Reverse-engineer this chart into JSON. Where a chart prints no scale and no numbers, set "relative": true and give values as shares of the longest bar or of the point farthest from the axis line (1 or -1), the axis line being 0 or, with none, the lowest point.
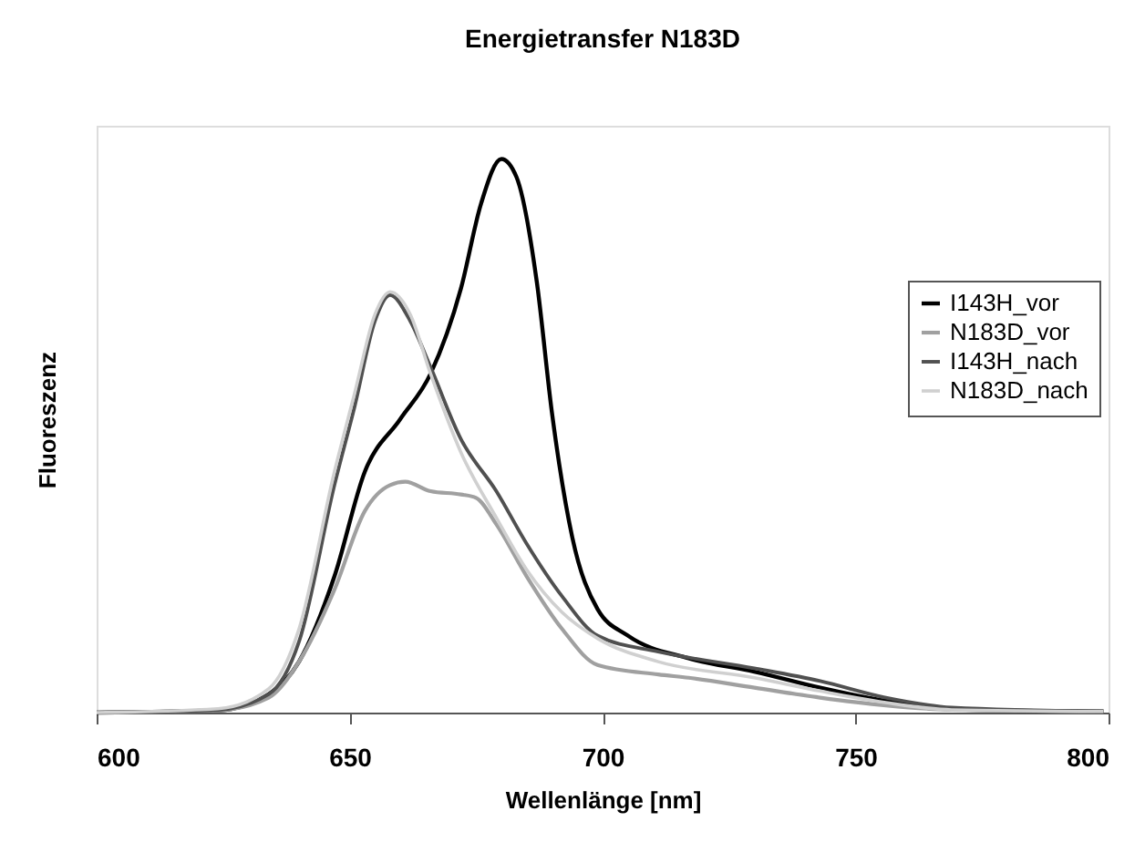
{
  "chart_data": {
    "type": "line",
    "title": "Energietransfer N183D",
    "xlabel": "Wellenlänge [nm]",
    "ylabel": "Fluoreszenz",
    "relative": true,
    "xlim": [
      600,
      800
    ],
    "xticks": [
      600,
      650,
      700,
      750,
      800
    ],
    "grid": false,
    "legend": "right",
    "x": [
      600,
      624,
      634,
      640,
      647,
      653,
      660,
      666,
      672,
      676,
      680,
      683,
      687,
      690,
      694,
      699,
      705,
      717,
      730,
      743,
      756,
      769,
      799
    ],
    "series": [
      {
        "name": "I143H_vor",
        "color": "#000000",
        "values": [
          0.0,
          0.004,
          0.033,
          0.092,
          0.246,
          0.435,
          0.53,
          0.612,
          0.766,
          0.92,
          1.0,
          0.967,
          0.778,
          0.541,
          0.317,
          0.187,
          0.139,
          0.098,
          0.074,
          0.045,
          0.021,
          0.006,
          0.002
        ]
      },
      {
        "name": "N183D_vor",
        "color": "#a0a0a0",
        "x": [
          600,
          624,
          634,
          640,
          647,
          653,
          658,
          661,
          666,
          672,
          675,
          679,
          685,
          692,
          699,
          711,
          717,
          730,
          743,
          756,
          769,
          799
        ],
        "values": [
          0.0,
          0.004,
          0.027,
          0.092,
          0.222,
          0.364,
          0.411,
          0.417,
          0.4,
          0.394,
          0.388,
          0.34,
          0.246,
          0.151,
          0.086,
          0.069,
          0.063,
          0.045,
          0.027,
          0.013,
          0.005,
          0.002
        ]
      },
      {
        "name": "I143H_nach",
        "color": "#505050",
        "x": [
          600,
          624,
          634,
          640,
          647,
          651,
          655,
          658,
          662,
          666,
          672,
          679,
          685,
          692,
          699,
          711,
          730,
          743,
          756,
          769,
          799
        ],
        "values": [
          0.0,
          0.005,
          0.033,
          0.128,
          0.411,
          0.553,
          0.707,
          0.754,
          0.707,
          0.624,
          0.494,
          0.4,
          0.305,
          0.21,
          0.139,
          0.11,
          0.08,
          0.057,
          0.027,
          0.009,
          0.002
        ]
      },
      {
        "name": "N183D_nach",
        "color": "#d0d0d0",
        "x": [
          600,
          624,
          634,
          640,
          647,
          651,
          655,
          658,
          662,
          666,
          672,
          679,
          685,
          692,
          699,
          711,
          730,
          743,
          756,
          769,
          799
        ],
        "values": [
          0.0,
          0.007,
          0.043,
          0.151,
          0.435,
          0.577,
          0.719,
          0.76,
          0.719,
          0.612,
          0.47,
          0.352,
          0.258,
          0.181,
          0.134,
          0.092,
          0.063,
          0.039,
          0.018,
          0.005,
          0.002
        ]
      }
    ]
  }
}
